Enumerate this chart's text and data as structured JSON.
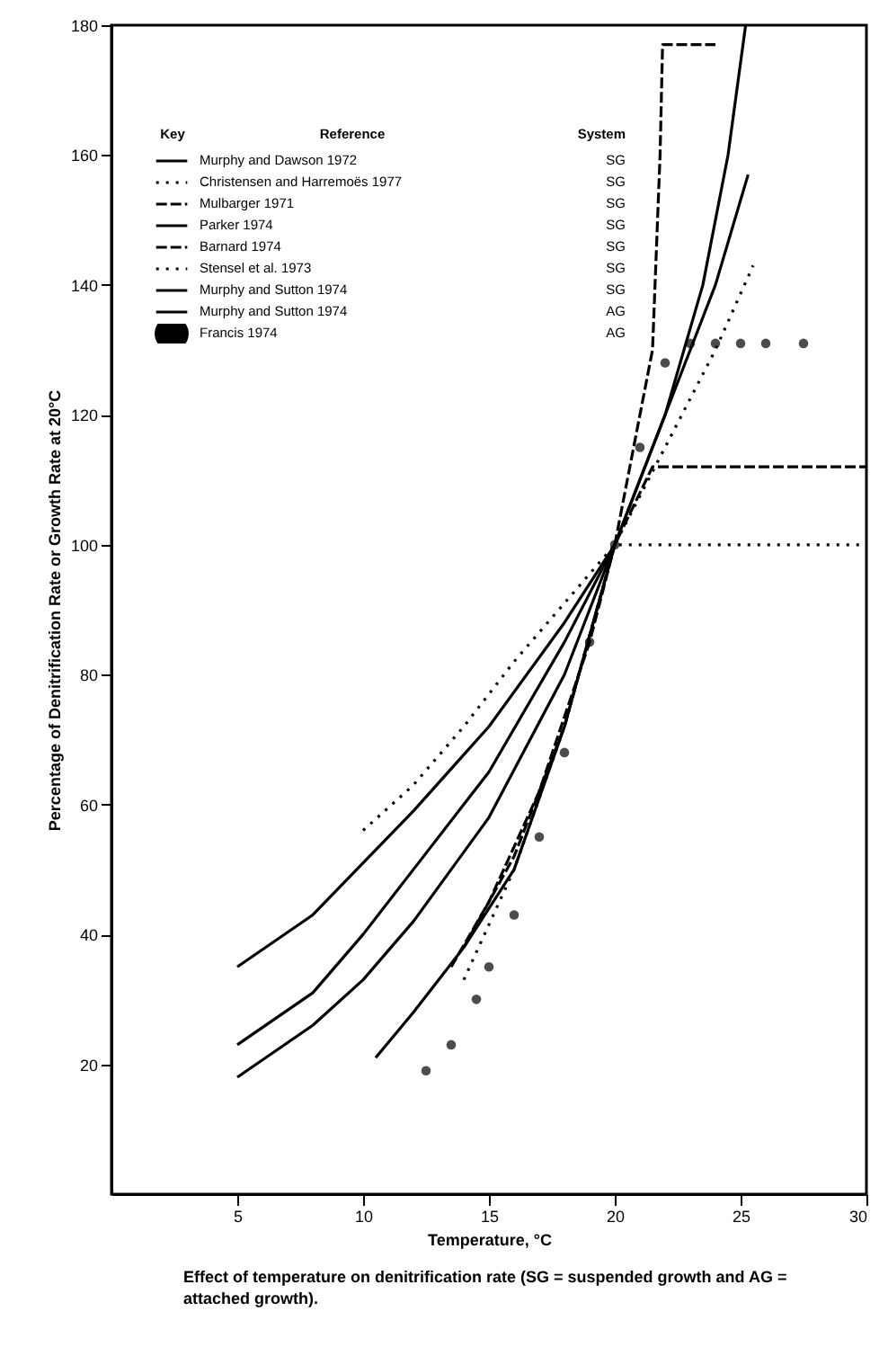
{
  "chart_data": {
    "type": "line",
    "xlabel": "Temperature, °C",
    "ylabel": "Percentage of Denitrification Rate or Growth Rate at 20°C",
    "xlim": [
      0,
      30
    ],
    "ylim": [
      0,
      180
    ],
    "xticks": [
      5,
      10,
      15,
      20,
      25,
      30
    ],
    "yticks": [
      20,
      40,
      60,
      80,
      100,
      120,
      140,
      160,
      180
    ],
    "grid": false,
    "legend": "top left",
    "series": [
      {
        "name": "Murphy and Dawson 1972",
        "color": "#000000",
        "line_style": "solid",
        "x": [
          5,
          8,
          10,
          12,
          15,
          18,
          20,
          22,
          23.5,
          24.5,
          25.2
        ],
        "values": [
          35,
          43,
          51,
          59,
          72,
          88,
          100,
          120,
          140,
          160,
          180
        ]
      },
      {
        "name": "Christensen and Harremoës 1977",
        "color": "#000000",
        "line_style": "dotted",
        "x": [
          10,
          12,
          14,
          16,
          18,
          20,
          25,
          30
        ],
        "values": [
          56,
          63,
          72,
          82,
          91,
          100,
          100,
          100
        ]
      },
      {
        "name": "Mulbarger 1971",
        "color": "#000000",
        "line_style": "dashed",
        "x": [
          14,
          16,
          18,
          20,
          21.5,
          21.8,
          21.9,
          24
        ],
        "values": [
          38,
          52,
          72,
          100,
          130,
          160,
          177,
          177
        ]
      },
      {
        "name": "Parker 1974",
        "color": "#000000",
        "line_style": "solid",
        "x": [
          5,
          8,
          10,
          12,
          15,
          18,
          20,
          22,
          24,
          25.3
        ],
        "values": [
          23,
          31,
          40,
          50,
          65,
          85,
          100,
          120,
          140,
          157
        ]
      },
      {
        "name": "Barnard 1974",
        "color": "#000000",
        "line_style": "dashed",
        "x": [
          13.5,
          15,
          17,
          19,
          20,
          21.5,
          30
        ],
        "values": [
          35,
          45,
          62,
          85,
          100,
          112,
          112
        ]
      },
      {
        "name": "Stensel et al. 1973",
        "color": "#000000",
        "line_style": "dotted",
        "x": [
          14,
          16,
          18,
          20,
          22,
          24,
          25.5
        ],
        "values": [
          33,
          50,
          72,
          100,
          115,
          130,
          143
        ]
      },
      {
        "name": "Murphy and Sutton 1974",
        "color": "#000000",
        "line_style": "solid",
        "x": [
          5,
          8,
          10,
          12,
          15,
          18,
          20
        ],
        "values": [
          18,
          26,
          33,
          42,
          58,
          80,
          100
        ]
      },
      {
        "name": "Murphy and Sutton 1974",
        "color": "#000000",
        "line_style": "solid",
        "x": [
          10.5,
          12,
          14,
          16,
          18,
          20
        ],
        "values": [
          21,
          28,
          38,
          50,
          72,
          100
        ]
      },
      {
        "name": "Francis 1974",
        "color": "#000000",
        "type": "scatter",
        "marker": "circle",
        "x": [
          12.5,
          13.5,
          14.5,
          15,
          16,
          17,
          18,
          19,
          20,
          21,
          22,
          23,
          24,
          25,
          26,
          27.5
        ],
        "values": [
          19,
          23,
          30,
          35,
          43,
          55,
          68,
          85,
          100,
          115,
          128,
          131,
          131,
          131,
          131,
          131
        ]
      }
    ],
    "annotations": [
      "Key",
      "Reference",
      "System",
      "SG",
      "SG",
      "SG",
      "SG",
      "SG",
      "SG",
      "SG",
      "AG",
      "AG",
      "Effect of temperature on denitrification rate (SG = suspended growth and AG = attached growth)."
    ]
  }
}
